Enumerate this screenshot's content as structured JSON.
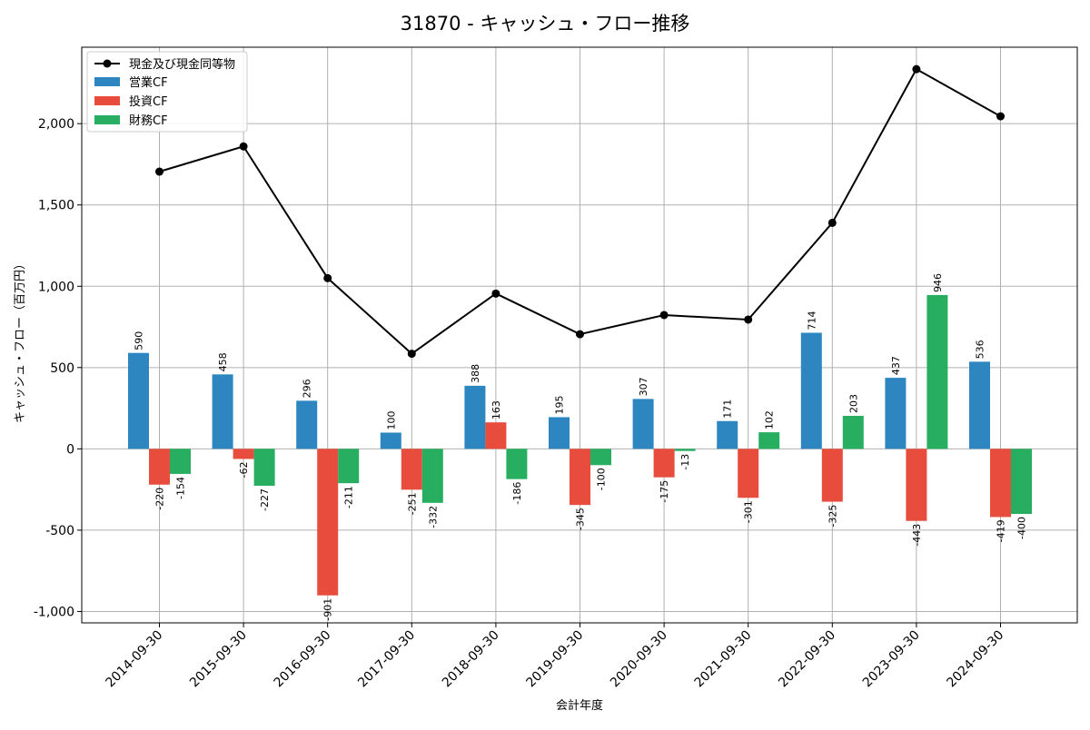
{
  "chart_data": {
    "type": "bar",
    "title": "31870 - キャッシュ・フロー推移",
    "xlabel": "会計年度",
    "ylabel": "キャッシュ・フロー（百万円）",
    "ylim": [
      -1070,
      2470
    ],
    "yticks": [
      -1000,
      -500,
      0,
      500,
      1000,
      1500,
      2000
    ],
    "ytick_labels": [
      "-1,000",
      "-500",
      "0",
      "500",
      "1,000",
      "1,500",
      "2,000"
    ],
    "grid": true,
    "legend_position": "top-left",
    "categories": [
      "2014-09-30",
      "2015-09-30",
      "2016-09-30",
      "2017-09-30",
      "2018-09-30",
      "2019-09-30",
      "2020-09-30",
      "2021-09-30",
      "2022-09-30",
      "2023-09-30",
      "2024-09-30"
    ],
    "line_series": {
      "name": "現金及び現金同等物",
      "color": "#000000",
      "values": [
        1705,
        1860,
        1050,
        585,
        955,
        705,
        823,
        795,
        1390,
        2335,
        2045
      ]
    },
    "series": [
      {
        "name": "営業CF",
        "color": "#2e86c1",
        "values": [
          590,
          458,
          296,
          100,
          388,
          195,
          307,
          171,
          714,
          437,
          536
        ],
        "labels": [
          "590",
          "458",
          "296",
          "100",
          "388",
          "195",
          "307",
          "171",
          "714",
          "437",
          "536"
        ]
      },
      {
        "name": "投資CF",
        "color": "#e74c3c",
        "values": [
          -220,
          -62,
          -901,
          -251,
          163,
          -345,
          -175,
          -301,
          -325,
          -443,
          -419
        ],
        "labels": [
          "-220",
          "-62",
          "-901",
          "-251",
          "163",
          "-345",
          "-175",
          "-301",
          "-325",
          "-443",
          "-419"
        ]
      },
      {
        "name": "財務CF",
        "color": "#27ae60",
        "values": [
          -154,
          -227,
          -211,
          -332,
          -186,
          -100,
          -13,
          102,
          203,
          946,
          -400
        ],
        "labels": [
          "-154",
          "-227",
          "-211",
          "-332",
          "-186",
          "-100",
          "-13",
          "102",
          "203",
          "946",
          "-400"
        ]
      }
    ]
  }
}
